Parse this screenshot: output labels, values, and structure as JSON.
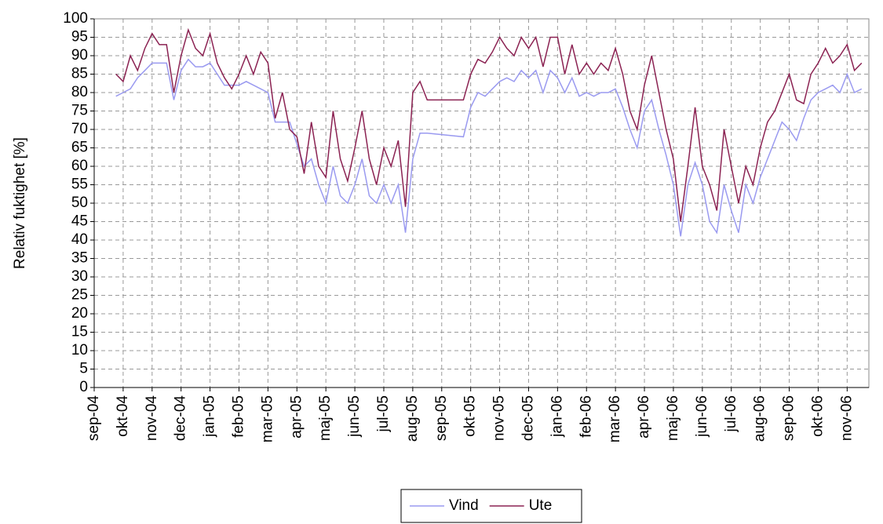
{
  "chart_data": {
    "type": "line",
    "y_label": "Relativ fuktighet [%]",
    "x": [
      0.75,
      1,
      1.25,
      1.5,
      1.75,
      2,
      2.25,
      2.5,
      2.75,
      3,
      3.25,
      3.5,
      3.75,
      4,
      4.25,
      4.5,
      4.75,
      5,
      5.25,
      5.5,
      5.75,
      6,
      6.25,
      6.5,
      6.75,
      7,
      7.25,
      7.5,
      7.75,
      8,
      8.25,
      8.5,
      8.75,
      9,
      9.25,
      9.5,
      9.75,
      10,
      10.25,
      10.5,
      10.75,
      11,
      11.25,
      11.5,
      12.75,
      13,
      13.25,
      13.5,
      13.75,
      14,
      14.25,
      14.5,
      14.75,
      15,
      15.25,
      15.5,
      15.75,
      16,
      16.25,
      16.5,
      16.75,
      17,
      17.25,
      17.5,
      17.75,
      18,
      18.25,
      18.5,
      18.75,
      19,
      19.25,
      19.5,
      19.75,
      20,
      20.25,
      20.5,
      20.75,
      21,
      21.25,
      21.5,
      21.75,
      22,
      22.25,
      22.5,
      22.75,
      23,
      23.25,
      23.5,
      23.75,
      24,
      24.25,
      24.5,
      24.75,
      25,
      25.25,
      25.5,
      25.75,
      26,
      26.25,
      26.5
    ],
    "series": [
      {
        "name": "Vind",
        "color": "#9a9af0",
        "values": [
          79,
          80,
          81,
          84,
          86,
          88,
          88,
          88,
          78,
          86,
          89,
          87,
          87,
          88,
          85,
          82,
          82,
          82,
          83,
          82,
          81,
          80,
          72,
          72,
          72,
          66,
          60,
          62,
          55,
          50,
          60,
          52,
          50,
          55,
          62,
          52,
          50,
          55,
          50,
          55,
          42,
          62,
          69,
          69,
          68,
          76,
          80,
          79,
          81,
          83,
          84,
          83,
          86,
          84,
          86,
          80,
          86,
          84,
          80,
          84,
          79,
          80,
          79,
          80,
          80,
          81,
          76,
          70,
          65,
          75,
          78,
          70,
          63,
          55,
          41,
          55,
          61,
          55,
          45,
          42,
          55,
          48,
          42,
          55,
          50,
          57,
          62,
          67,
          72,
          70,
          67,
          73,
          78,
          80,
          81,
          82,
          80,
          85,
          80,
          81
        ]
      },
      {
        "name": "Ute",
        "color": "#8b2252",
        "values": [
          85,
          83,
          90,
          86,
          92,
          96,
          93,
          93,
          80,
          90,
          97,
          92,
          90,
          96,
          88,
          84,
          81,
          85,
          90,
          85,
          91,
          88,
          73,
          80,
          70,
          68,
          58,
          72,
          60,
          57,
          75,
          62,
          56,
          65,
          75,
          62,
          55,
          65,
          60,
          67,
          49,
          80,
          83,
          78,
          78,
          85,
          89,
          88,
          91,
          95,
          92,
          90,
          95,
          92,
          95,
          87,
          95,
          95,
          85,
          93,
          85,
          88,
          85,
          88,
          86,
          92,
          85,
          75,
          70,
          82,
          90,
          80,
          70,
          62,
          45,
          60,
          76,
          60,
          55,
          48,
          70,
          60,
          50,
          60,
          55,
          65,
          72,
          75,
          80,
          85,
          78,
          77,
          85,
          88,
          92,
          88,
          90,
          93,
          86,
          88
        ]
      }
    ],
    "xlim": [
      0,
      26.75
    ],
    "xticks": [
      {
        "value": 0,
        "label": "sep-04"
      },
      {
        "value": 1,
        "label": "okt-04"
      },
      {
        "value": 2,
        "label": "nov-04"
      },
      {
        "value": 3,
        "label": "dec-04"
      },
      {
        "value": 4,
        "label": "jan-05"
      },
      {
        "value": 5,
        "label": "feb-05"
      },
      {
        "value": 6,
        "label": "mar-05"
      },
      {
        "value": 7,
        "label": "apr-05"
      },
      {
        "value": 8,
        "label": "maj-05"
      },
      {
        "value": 9,
        "label": "jun-05"
      },
      {
        "value": 10,
        "label": "jul-05"
      },
      {
        "value": 11,
        "label": "aug-05"
      },
      {
        "value": 12,
        "label": "sep-05"
      },
      {
        "value": 13,
        "label": "okt-05"
      },
      {
        "value": 14,
        "label": "nov-05"
      },
      {
        "value": 15,
        "label": "dec-05"
      },
      {
        "value": 16,
        "label": "jan-06"
      },
      {
        "value": 17,
        "label": "feb-06"
      },
      {
        "value": 18,
        "label": "mar-06"
      },
      {
        "value": 19,
        "label": "apr-06"
      },
      {
        "value": 20,
        "label": "maj-06"
      },
      {
        "value": 21,
        "label": "jun-06"
      },
      {
        "value": 22,
        "label": "jul-06"
      },
      {
        "value": 23,
        "label": "aug-06"
      },
      {
        "value": 24,
        "label": "sep-06"
      },
      {
        "value": 25,
        "label": "okt-06"
      },
      {
        "value": 26,
        "label": "nov-06"
      }
    ],
    "ylim": [
      0,
      100
    ],
    "yticks": [
      0,
      5,
      10,
      15,
      20,
      25,
      30,
      35,
      40,
      45,
      50,
      55,
      60,
      65,
      70,
      75,
      80,
      85,
      90,
      95,
      100
    ],
    "grid": true,
    "legend": "bottom"
  }
}
